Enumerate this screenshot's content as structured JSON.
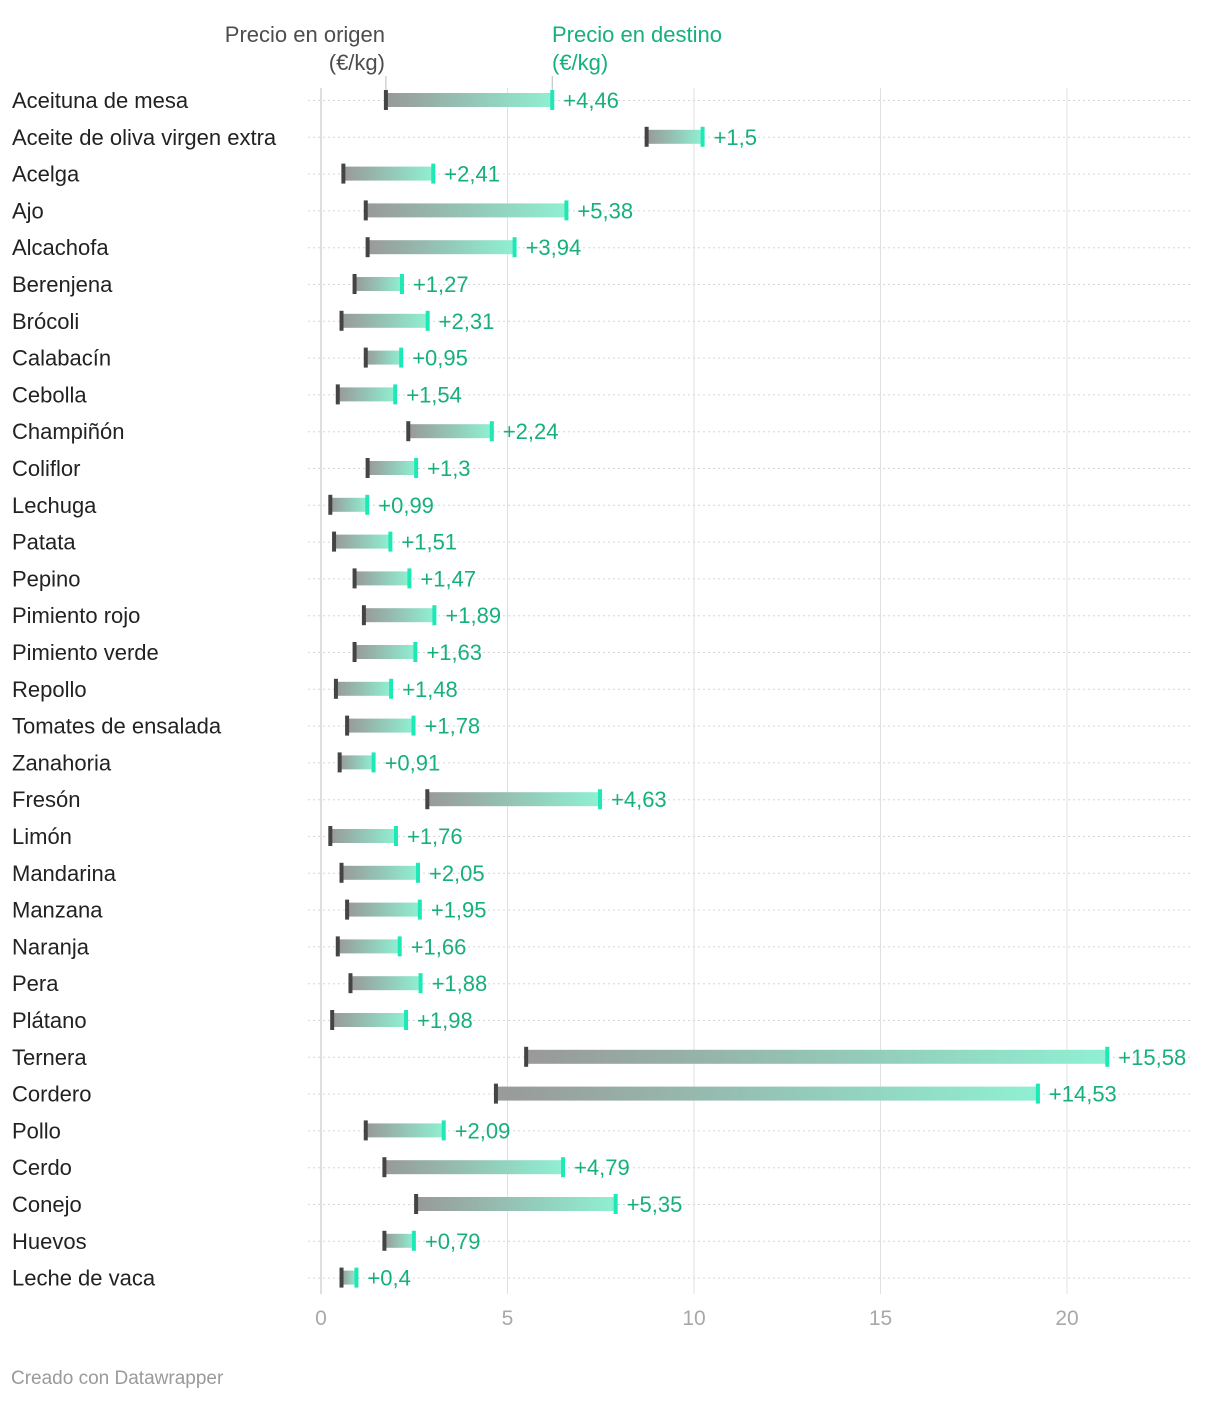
{
  "chart_data": {
    "type": "range_bar",
    "header": {
      "origin_label_line1": "Precio en origen",
      "origin_label_line2": "(€/kg)",
      "dest_label_line1": "Precio en destino",
      "dest_label_line2": "(€/kg)"
    },
    "xlim": [
      0,
      23
    ],
    "xticks": [
      0,
      5,
      10,
      15,
      20
    ],
    "grid": true,
    "colors": {
      "origin": "#444444",
      "destination": "#1de9b6",
      "diff_label": "#16b07c",
      "bar_gray": "#9a9a9a",
      "bar_mint": "#8ff0d2"
    },
    "rows": [
      {
        "name": "Aceituna de mesa",
        "origin": 1.74,
        "destination": 6.2,
        "diff": "+4,46"
      },
      {
        "name": "Aceite de oliva virgen extra",
        "origin": 8.73,
        "destination": 10.23,
        "diff": "+1,5"
      },
      {
        "name": "Acelga",
        "origin": 0.6,
        "destination": 3.01,
        "diff": "+2,41"
      },
      {
        "name": "Ajo",
        "origin": 1.2,
        "destination": 6.58,
        "diff": "+5,38"
      },
      {
        "name": "Alcachofa",
        "origin": 1.25,
        "destination": 5.19,
        "diff": "+3,94"
      },
      {
        "name": "Berenjena",
        "origin": 0.9,
        "destination": 2.17,
        "diff": "+1,27"
      },
      {
        "name": "Brócoli",
        "origin": 0.55,
        "destination": 2.86,
        "diff": "+2,31"
      },
      {
        "name": "Calabacín",
        "origin": 1.2,
        "destination": 2.15,
        "diff": "+0,95"
      },
      {
        "name": "Cebolla",
        "origin": 0.45,
        "destination": 1.99,
        "diff": "+1,54"
      },
      {
        "name": "Champiñón",
        "origin": 2.34,
        "destination": 4.58,
        "diff": "+2,24"
      },
      {
        "name": "Coliflor",
        "origin": 1.25,
        "destination": 2.55,
        "diff": "+1,3"
      },
      {
        "name": "Lechuga",
        "origin": 0.25,
        "destination": 1.24,
        "diff": "+0,99"
      },
      {
        "name": "Patata",
        "origin": 0.35,
        "destination": 1.86,
        "diff": "+1,51"
      },
      {
        "name": "Pepino",
        "origin": 0.9,
        "destination": 2.37,
        "diff": "+1,47"
      },
      {
        "name": "Pimiento rojo",
        "origin": 1.15,
        "destination": 3.04,
        "diff": "+1,89"
      },
      {
        "name": "Pimiento verde",
        "origin": 0.9,
        "destination": 2.53,
        "diff": "+1,63"
      },
      {
        "name": "Repollo",
        "origin": 0.4,
        "destination": 1.88,
        "diff": "+1,48"
      },
      {
        "name": "Tomates de ensalada",
        "origin": 0.7,
        "destination": 2.48,
        "diff": "+1,78"
      },
      {
        "name": "Zanahoria",
        "origin": 0.5,
        "destination": 1.41,
        "diff": "+0,91"
      },
      {
        "name": "Fresón",
        "origin": 2.85,
        "destination": 7.48,
        "diff": "+4,63"
      },
      {
        "name": "Limón",
        "origin": 0.25,
        "destination": 2.01,
        "diff": "+1,76"
      },
      {
        "name": "Mandarina",
        "origin": 0.55,
        "destination": 2.6,
        "diff": "+2,05"
      },
      {
        "name": "Manzana",
        "origin": 0.7,
        "destination": 2.65,
        "diff": "+1,95"
      },
      {
        "name": "Naranja",
        "origin": 0.45,
        "destination": 2.11,
        "diff": "+1,66"
      },
      {
        "name": "Pera",
        "origin": 0.79,
        "destination": 2.67,
        "diff": "+1,88"
      },
      {
        "name": "Plátano",
        "origin": 0.3,
        "destination": 2.28,
        "diff": "+1,98"
      },
      {
        "name": "Ternera",
        "origin": 5.5,
        "destination": 21.08,
        "diff": "+15,58"
      },
      {
        "name": "Cordero",
        "origin": 4.69,
        "destination": 19.22,
        "diff": "+14,53"
      },
      {
        "name": "Pollo",
        "origin": 1.2,
        "destination": 3.29,
        "diff": "+2,09"
      },
      {
        "name": "Cerdo",
        "origin": 1.7,
        "destination": 6.49,
        "diff": "+4,79"
      },
      {
        "name": "Conejo",
        "origin": 2.55,
        "destination": 7.9,
        "diff": "+5,35"
      },
      {
        "name": "Huevos",
        "origin": 1.7,
        "destination": 2.49,
        "diff": "+0,79"
      },
      {
        "name": "Leche de vaca",
        "origin": 0.55,
        "destination": 0.95,
        "diff": "+0,4"
      }
    ]
  },
  "footer": {
    "credit": "Creado con Datawrapper"
  }
}
